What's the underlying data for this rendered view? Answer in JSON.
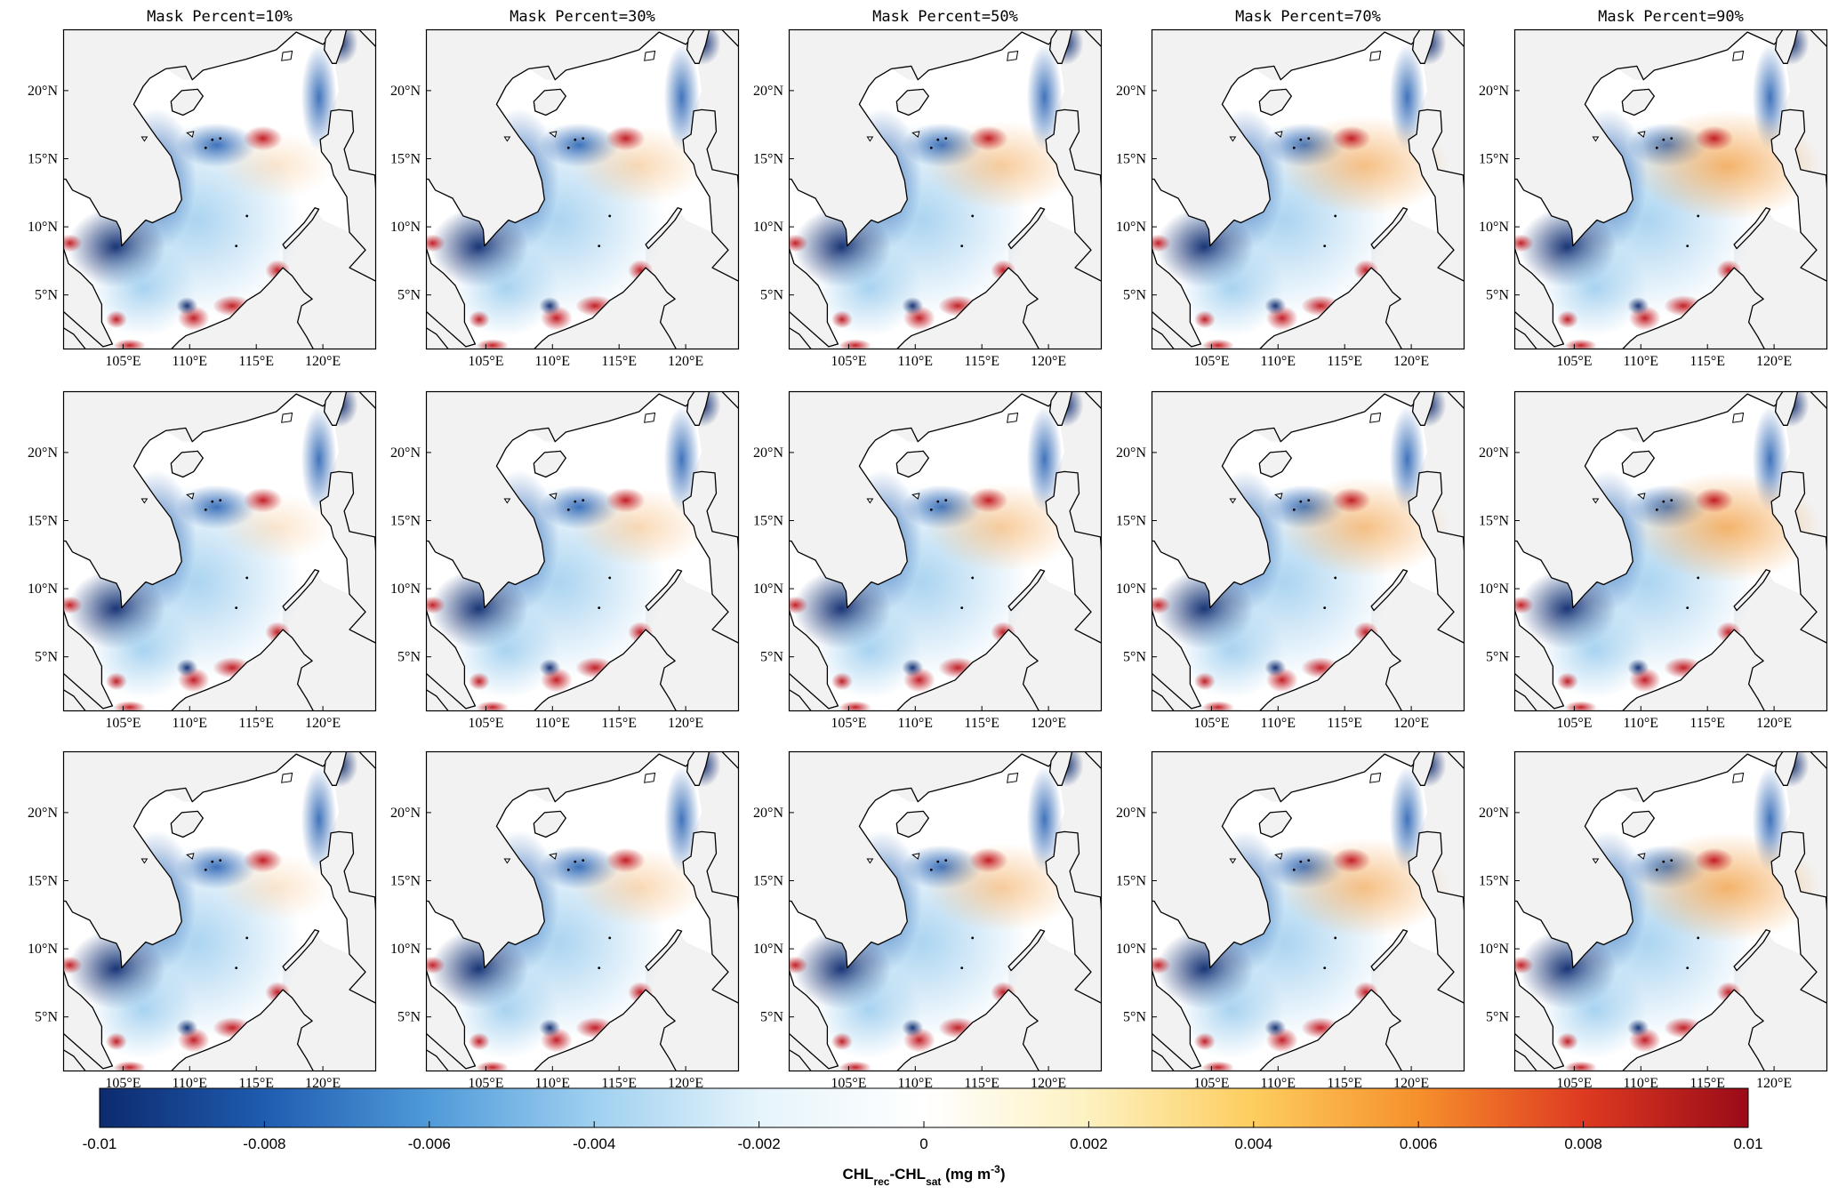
{
  "figure": {
    "columns": [
      {
        "title": "Mask Percent=10%",
        "mask_percent": 10
      },
      {
        "title": "Mask Percent=30%",
        "mask_percent": 30
      },
      {
        "title": "Mask Percent=50%",
        "mask_percent": 50
      },
      {
        "title": "Mask Percent=70%",
        "mask_percent": 70
      },
      {
        "title": "Mask Percent=90%",
        "mask_percent": 90
      }
    ],
    "rows": 3,
    "map": {
      "lon_range": [
        100.5,
        124
      ],
      "lat_range": [
        1,
        24.5
      ],
      "lon_ticks": [
        "105°E",
        "110°E",
        "115°E",
        "120°E"
      ],
      "lat_ticks": [
        "20°N",
        "15°N",
        "10°N",
        "5°N"
      ],
      "lon_tick_values": [
        105,
        110,
        115,
        120
      ],
      "lat_tick_values": [
        20,
        15,
        10,
        5
      ],
      "land_color": "#f2f2f2",
      "coast_color": "#000000"
    },
    "colorbar": {
      "min": -0.01,
      "max": 0.01,
      "tick_values": [
        -0.01,
        -0.008,
        -0.006,
        -0.004,
        -0.002,
        0,
        0.002,
        0.004,
        0.006,
        0.008,
        0.01
      ],
      "tick_labels": [
        "-0.01",
        "-0.008",
        "-0.006",
        "-0.004",
        "-0.002",
        "0",
        "0.002",
        "0.004",
        "0.006",
        "0.008",
        "0.01"
      ],
      "label_main": "CHL",
      "label_sub1": "rec",
      "label_mid": "-CHL",
      "label_sub2": "sat",
      "label_units": " (mg m",
      "label_sup": "-3",
      "label_end": ")",
      "colors": [
        "#0d2a6e",
        "#1f5cb0",
        "#4f9ad9",
        "#9fd0f0",
        "#e6f4fb",
        "#ffffff",
        "#fdf1c0",
        "#fdcd5e",
        "#f6902c",
        "#de3a21",
        "#9a0a18"
      ]
    }
  }
}
